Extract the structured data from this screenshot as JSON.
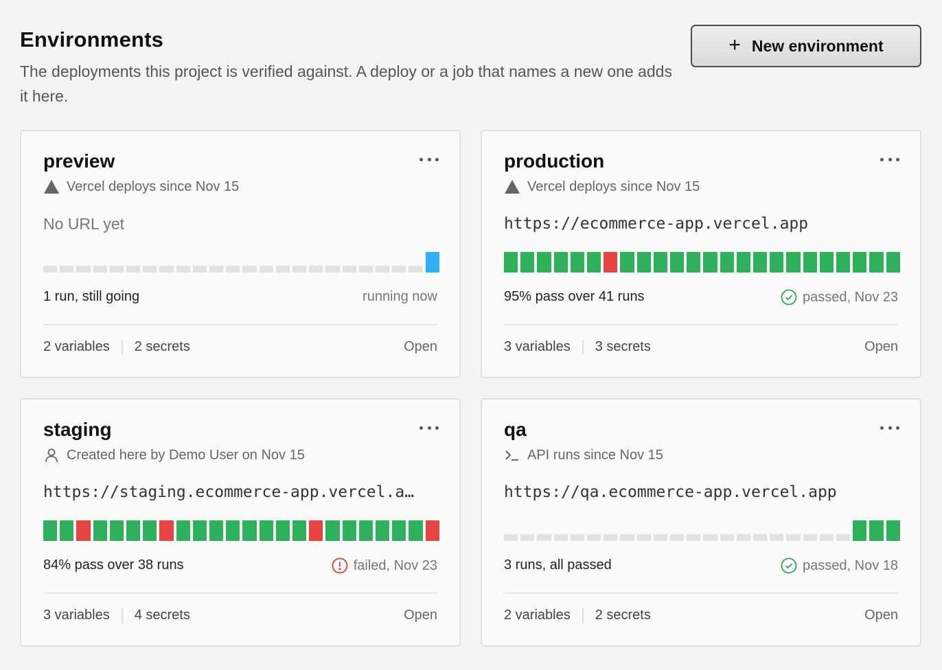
{
  "header": {
    "title": "Environments",
    "description": "The deployments this project is verified against. A deploy or a job that names a new one adds it here.",
    "new_button_label": "New environment"
  },
  "colors": {
    "pass": "#2fb05a",
    "fail": "#e84444",
    "running": "#2fb0f4",
    "empty": "#e2e2e2"
  },
  "environments": [
    {
      "name": "preview",
      "source_icon": "triangle-icon",
      "source": "Vercel deploys since Nov 15",
      "url": "No URL yet",
      "url_missing": true,
      "runs": "eeeeeeeeeeeeeeeeeeeeeeeR",
      "summary": "1 run, still going",
      "status_icon": "",
      "status": "running now",
      "variables": "2 variables",
      "secrets": "2 secrets",
      "open_label": "Open"
    },
    {
      "name": "production",
      "source_icon": "triangle-icon",
      "source": "Vercel deploys since Nov 15",
      "url": "https://ecommerce-app.vercel.app",
      "url_missing": false,
      "runs": "ppppppfppppppppppppppppp",
      "summary": "95% pass over 41 runs",
      "status_icon": "check-circle-icon",
      "status": "passed, Nov 23",
      "variables": "3 variables",
      "secrets": "3 secrets",
      "open_label": "Open"
    },
    {
      "name": "staging",
      "source_icon": "user-icon",
      "source": "Created here by Demo User on Nov 15",
      "url": "https://staging.ecommerce-app.vercel.a…",
      "url_missing": false,
      "runs": "ppfppppfppppppppfppppppf",
      "summary": "84% pass over 38 runs",
      "status_icon": "alert-circle-icon",
      "status": "failed, Nov 23",
      "variables": "3 variables",
      "secrets": "4 secrets",
      "open_label": "Open"
    },
    {
      "name": "qa",
      "source_icon": "terminal-icon",
      "source": "API runs since Nov 15",
      "url": "https://qa.ecommerce-app.vercel.app",
      "url_missing": false,
      "runs": "eeeeeeeeeeeeeeeeeeeeeppp",
      "summary": "3 runs, all passed",
      "status_icon": "check-circle-icon",
      "status": "passed, Nov 18",
      "variables": "2 variables",
      "secrets": "2 secrets",
      "open_label": "Open"
    }
  ]
}
